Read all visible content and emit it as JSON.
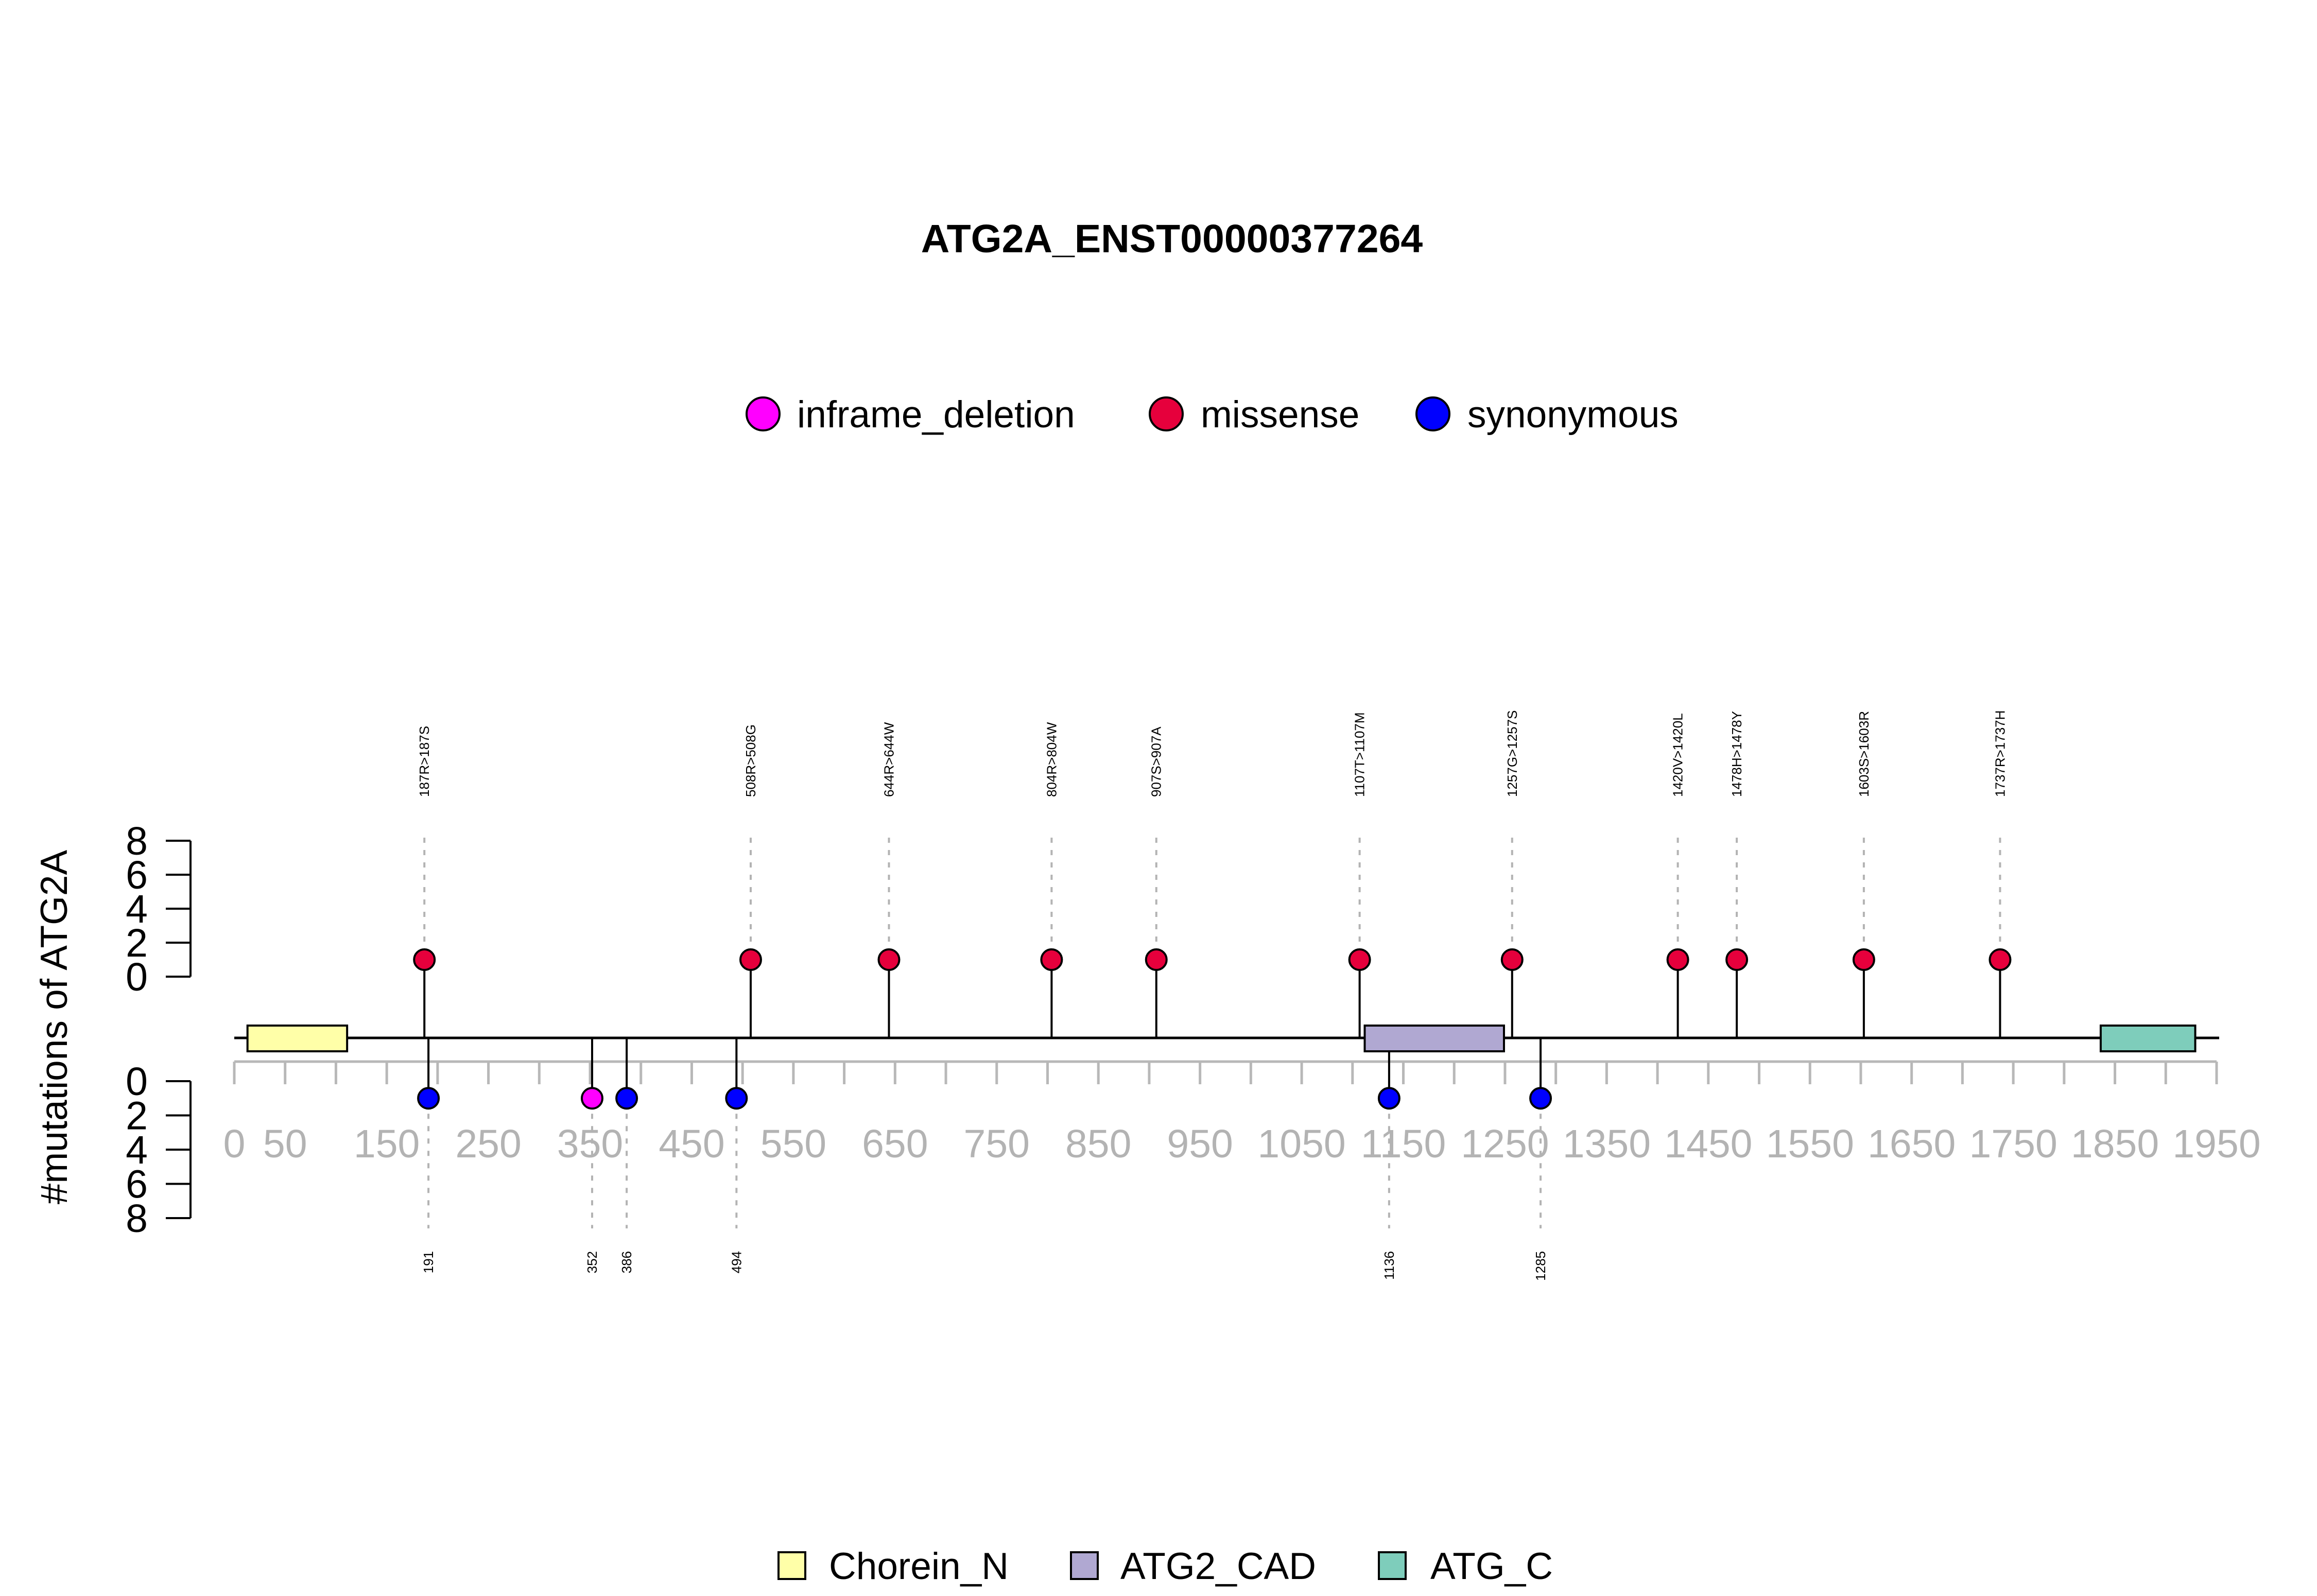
{
  "chart_data": {
    "type": "lollipop",
    "title": "ATG2A_ENST00000377264",
    "ylabel": "#mutations of ATG2A",
    "x_range": [
      0,
      1950
    ],
    "x_tick_labels": [
      "0",
      "50",
      "150",
      "250",
      "350",
      "450",
      "550",
      "650",
      "750",
      "850",
      "950",
      "1050",
      "1150",
      "1250",
      "1350",
      "1450",
      "1550",
      "1650",
      "1750",
      "1850",
      "1950"
    ],
    "y_tick_labels": [
      "0",
      "2",
      "4",
      "6",
      "8"
    ],
    "y_range": [
      0,
      8
    ],
    "legend_mutation_types": [
      {
        "label": "inframe_deletion",
        "color": "#ff00ff"
      },
      {
        "label": "missense",
        "color": "#e6003c"
      },
      {
        "label": "synonymous",
        "color": "#0000ff"
      }
    ],
    "legend_domains": [
      {
        "label": "Chorein_N",
        "color": "#ffffa8"
      },
      {
        "label": "ATG2_CAD",
        "color": "#b0a8d2"
      },
      {
        "label": "ATG_C",
        "color": "#7ecdbb"
      }
    ],
    "domains": [
      {
        "name": "Chorein_N",
        "start": 13,
        "end": 111
      },
      {
        "name": "ATG2_CAD",
        "start": 1112,
        "end": 1249
      },
      {
        "name": "ATG_C",
        "start": 1836,
        "end": 1929
      }
    ],
    "top_mutations": [
      {
        "position": 187,
        "label": "187R>187S",
        "count": 1,
        "type": "missense"
      },
      {
        "position": 508,
        "label": "508R>508G",
        "count": 1,
        "type": "missense"
      },
      {
        "position": 644,
        "label": "644R>644W",
        "count": 1,
        "type": "missense"
      },
      {
        "position": 804,
        "label": "804R>804W",
        "count": 1,
        "type": "missense"
      },
      {
        "position": 907,
        "label": "907S>907A",
        "count": 1,
        "type": "missense"
      },
      {
        "position": 1107,
        "label": "1107T>1107M",
        "count": 1,
        "type": "missense"
      },
      {
        "position": 1257,
        "label": "1257G>1257S",
        "count": 1,
        "type": "missense"
      },
      {
        "position": 1420,
        "label": "1420V>1420L",
        "count": 1,
        "type": "missense"
      },
      {
        "position": 1478,
        "label": "1478H>1478Y",
        "count": 1,
        "type": "missense"
      },
      {
        "position": 1603,
        "label": "1603S>1603R",
        "count": 1,
        "type": "missense"
      },
      {
        "position": 1737,
        "label": "1737R>1737H",
        "count": 1,
        "type": "missense"
      }
    ],
    "bottom_mutations": [
      {
        "position": 191,
        "label": "191",
        "count": 1,
        "type": "synonymous"
      },
      {
        "position": 352,
        "label": "352",
        "count": 1,
        "type": "inframe_deletion"
      },
      {
        "position": 386,
        "label": "386",
        "count": 1,
        "type": "synonymous"
      },
      {
        "position": 494,
        "label": "494",
        "count": 1,
        "type": "synonymous"
      },
      {
        "position": 1136,
        "label": "1136",
        "count": 1,
        "type": "synonymous"
      },
      {
        "position": 1285,
        "label": "1285",
        "count": 1,
        "type": "synonymous"
      }
    ]
  }
}
